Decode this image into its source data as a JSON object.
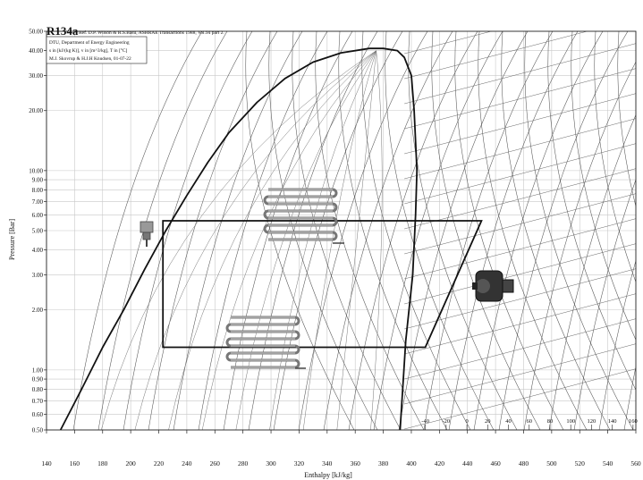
{
  "chart_data": {
    "type": "line",
    "title": "R134a",
    "reference": "Ref. D.P. Wilson & R.S.Basu, ASHRAE Transactions 1988, Vol.94 part 2.",
    "info_box": [
      "DTU, Department of Energy Engineering",
      "s in [kJ/(kg K)], v in [m^3/kg], T in [°C]",
      "M.J. Skovrup & H.J.H Knudsen, 01-07-22"
    ],
    "xlabel": "Enthalpy [kJ/kg]",
    "ylabel": "Pressure [Bar]",
    "xlim": [
      140,
      560
    ],
    "ylim": [
      0.5,
      50
    ],
    "y_scale": "log",
    "grid": true,
    "x_ticks": [
      "140",
      "160",
      "180",
      "200",
      "220",
      "240",
      "260",
      "280",
      "300",
      "320",
      "340",
      "360",
      "380",
      "400",
      "420",
      "440",
      "460",
      "480",
      "500",
      "520",
      "540",
      "560"
    ],
    "y_ticks": [
      "0.50",
      "0.60",
      "0.70",
      "0.80",
      "0.90",
      "1.00",
      "2.00",
      "3.00",
      "4.00",
      "5.00",
      "6.00",
      "7.00",
      "8.00",
      "9.00",
      "10.00",
      "20.00",
      "30.00",
      "40.00",
      "50.00"
    ],
    "temperature_ticks": [
      "-40",
      "-20",
      "0",
      "20",
      "40",
      "60",
      "80",
      "100",
      "120",
      "140",
      "160"
    ],
    "saturation_dome": {
      "liquid": [
        [
          150,
          0.5
        ],
        [
          165,
          0.8
        ],
        [
          180,
          1.3
        ],
        [
          195,
          2.0
        ],
        [
          210,
          3.2
        ],
        [
          225,
          5.0
        ],
        [
          240,
          7.5
        ],
        [
          255,
          11.0
        ],
        [
          270,
          15.5
        ],
        [
          290,
          22.0
        ],
        [
          310,
          29.0
        ],
        [
          330,
          35.0
        ],
        [
          350,
          39.0
        ],
        [
          370,
          41.0
        ],
        [
          380,
          41.0
        ]
      ],
      "vapor": [
        [
          380,
          41.0
        ],
        [
          390,
          40.0
        ],
        [
          395,
          37.0
        ],
        [
          400,
          30.0
        ],
        [
          402,
          20.0
        ],
        [
          403,
          14.0
        ],
        [
          404,
          10.0
        ],
        [
          403,
          6.0
        ],
        [
          401,
          3.0
        ],
        [
          396,
          1.4
        ],
        [
          392,
          0.5
        ]
      ]
    },
    "cycle": {
      "points": [
        [
          223,
          5.6
        ],
        [
          450,
          5.6
        ],
        [
          410,
          1.3
        ],
        [
          223,
          1.3
        ]
      ],
      "condensing_pressure": 5.6,
      "evaporating_pressure": 1.3
    },
    "components": [
      "expansion-valve",
      "condenser-coil",
      "evaporator-coil",
      "compressor"
    ]
  }
}
